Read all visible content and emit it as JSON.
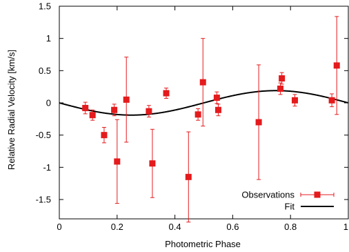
{
  "chart_data": {
    "type": "scatter",
    "xlabel": "Photometric Phase",
    "ylabel": "Relative Radial Velocity [km/s]",
    "xlim": [
      0,
      1
    ],
    "ylim": [
      -1.8,
      1.5
    ],
    "x_ticks": [
      {
        "value": 0,
        "label": "0"
      },
      {
        "value": 0.2,
        "label": "0.2"
      },
      {
        "value": 0.4,
        "label": "0.4"
      },
      {
        "value": 0.6,
        "label": "0.6"
      },
      {
        "value": 0.8,
        "label": "0.8"
      },
      {
        "value": 1,
        "label": "1"
      }
    ],
    "y_ticks": [
      {
        "value": -1.5,
        "label": "-1.5"
      },
      {
        "value": -1,
        "label": "-1"
      },
      {
        "value": -0.5,
        "label": "-0.5"
      },
      {
        "value": 0,
        "label": "0"
      },
      {
        "value": 0.5,
        "label": "0.5"
      },
      {
        "value": 1,
        "label": "1"
      },
      {
        "value": 1.5,
        "label": "1.5"
      }
    ],
    "grid": false,
    "legend_position": "bottom-right",
    "series": [
      {
        "name": "Observations",
        "kind": "points-with-errorbars",
        "color": "#e41a1c",
        "points": [
          {
            "x": 0.09,
            "y": -0.08,
            "yerr": 0.09
          },
          {
            "x": 0.115,
            "y": -0.19,
            "yerr": 0.08
          },
          {
            "x": 0.155,
            "y": -0.5,
            "yerr": 0.12
          },
          {
            "x": 0.19,
            "y": -0.11,
            "yerr": 0.09
          },
          {
            "x": 0.2,
            "y": -0.91,
            "yerr": 0.65
          },
          {
            "x": 0.232,
            "y": 0.05,
            "yerr": 0.66
          },
          {
            "x": 0.31,
            "y": -0.13,
            "yerr": 0.09
          },
          {
            "x": 0.322,
            "y": -0.94,
            "yerr": 0.53
          },
          {
            "x": 0.37,
            "y": 0.15,
            "yerr": 0.08
          },
          {
            "x": 0.447,
            "y": -1.15,
            "yerr": 0.7
          },
          {
            "x": 0.48,
            "y": -0.18,
            "yerr": 0.09
          },
          {
            "x": 0.497,
            "y": 0.32,
            "yerr": 0.68
          },
          {
            "x": 0.545,
            "y": 0.08,
            "yerr": 0.09
          },
          {
            "x": 0.55,
            "y": -0.11,
            "yerr": 0.09
          },
          {
            "x": 0.69,
            "y": -0.3,
            "yerr": 0.89
          },
          {
            "x": 0.765,
            "y": 0.22,
            "yerr": 0.09
          },
          {
            "x": 0.77,
            "y": 0.38,
            "yerr": 0.09
          },
          {
            "x": 0.815,
            "y": 0.04,
            "yerr": 0.09
          },
          {
            "x": 0.943,
            "y": 0.04,
            "yerr": 0.1
          },
          {
            "x": 0.96,
            "y": 0.58,
            "yerr": 0.76
          }
        ]
      },
      {
        "name": "Fit",
        "kind": "curve",
        "color": "#000000",
        "model": {
          "form": "sine",
          "amplitude": 0.19,
          "phase_of_maximum": 0.75,
          "offset": 0
        }
      }
    ]
  }
}
